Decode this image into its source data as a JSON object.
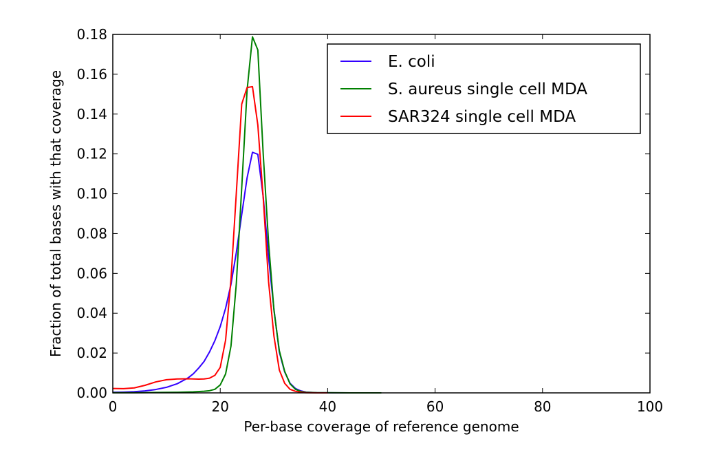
{
  "chart_data": {
    "type": "line",
    "title": "",
    "xlabel": "Per-base coverage of reference genome",
    "ylabel": "Fraction of total bases with that coverage",
    "xlim": [
      0,
      100
    ],
    "ylim": [
      0,
      0.18
    ],
    "x_ticks": [
      0,
      20,
      40,
      60,
      80,
      100
    ],
    "x_tick_labels": [
      "0",
      "20",
      "40",
      "60",
      "80",
      "100"
    ],
    "y_ticks": [
      0,
      0.02,
      0.04,
      0.06,
      0.08,
      0.1,
      0.12,
      0.14,
      0.16,
      0.18
    ],
    "y_tick_labels": [
      "0.00",
      "0.02",
      "0.04",
      "0.06",
      "0.08",
      "0.10",
      "0.12",
      "0.14",
      "0.16",
      "0.18"
    ],
    "grid": false,
    "legend_position": "top-right",
    "series": [
      {
        "name": "E. coli",
        "color": "#3300ff",
        "x": [
          0,
          2,
          4,
          6,
          8,
          10,
          12,
          14,
          15,
          16,
          17,
          18,
          19,
          20,
          21,
          22,
          23,
          24,
          25,
          26,
          27,
          28,
          29,
          30,
          31,
          32,
          33,
          34,
          35,
          36,
          38,
          40,
          45,
          50
        ],
        "y": [
          0.0003,
          0.0004,
          0.0006,
          0.001,
          0.0017,
          0.0028,
          0.0046,
          0.0075,
          0.0096,
          0.0125,
          0.0158,
          0.0205,
          0.0262,
          0.0333,
          0.0425,
          0.0545,
          0.0705,
          0.0895,
          0.108,
          0.1208,
          0.1198,
          0.0985,
          0.068,
          0.042,
          0.0205,
          0.0105,
          0.0048,
          0.0022,
          0.001,
          0.0004,
          0.0001,
          5e-05,
          0.0,
          0.0
        ]
      },
      {
        "name": "S. aureus single cell MDA",
        "color": "#008000",
        "x": [
          0,
          4,
          8,
          12,
          15,
          17,
          18,
          19,
          20,
          21,
          22,
          23,
          24,
          25,
          26,
          27,
          28,
          29,
          30,
          31,
          32,
          33,
          34,
          35,
          36,
          38,
          40,
          45,
          50
        ],
        "y": [
          0.0001,
          0.0001,
          0.0002,
          0.0003,
          0.0005,
          0.0008,
          0.0011,
          0.0018,
          0.004,
          0.0095,
          0.0235,
          0.055,
          0.103,
          0.152,
          0.1788,
          0.1722,
          0.12,
          0.0755,
          0.0415,
          0.0212,
          0.0108,
          0.0045,
          0.0018,
          0.0007,
          0.0003,
          0.0001,
          0.0001,
          0.0,
          0.0
        ]
      },
      {
        "name": "SAR324 single cell MDA",
        "color": "#ff0000",
        "x": [
          0,
          2,
          4,
          6,
          8,
          10,
          12,
          14,
          16,
          17,
          18,
          19,
          20,
          21,
          22,
          23,
          24,
          25,
          26,
          27,
          28,
          29,
          30,
          31,
          32,
          33,
          34,
          35,
          36,
          38,
          40
        ],
        "y": [
          0.0022,
          0.0021,
          0.0025,
          0.0038,
          0.0055,
          0.0066,
          0.007,
          0.0071,
          0.0069,
          0.007,
          0.0074,
          0.0088,
          0.0128,
          0.0265,
          0.057,
          0.1005,
          0.145,
          0.1533,
          0.1538,
          0.1345,
          0.098,
          0.0558,
          0.0285,
          0.0115,
          0.0048,
          0.0018,
          0.0008,
          0.0003,
          0.0001,
          0.0,
          0.0
        ]
      }
    ]
  }
}
